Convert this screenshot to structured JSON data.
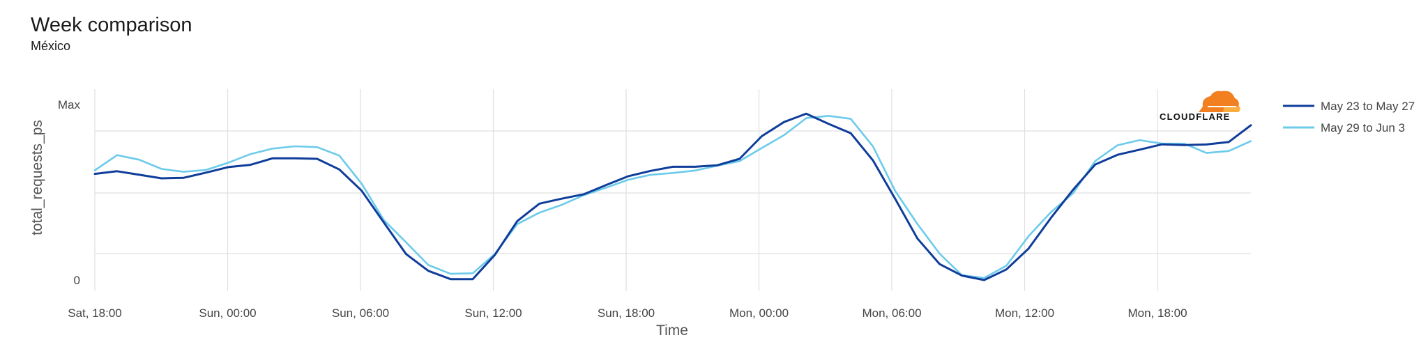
{
  "header": {
    "title": "Week comparison",
    "subtitle": "México"
  },
  "logo": {
    "text": "CLOUDFLARE",
    "color": "#f38020"
  },
  "colors": {
    "series_0": "#0f3d9a",
    "series_1": "#6ccbea",
    "grid": "#e0e0e0"
  },
  "chart_data": {
    "type": "line",
    "title": "Week comparison",
    "subtitle": "México",
    "xlabel": "Time",
    "ylabel": "total_requests_ps",
    "x_ticks": [
      "Sat, 18:00",
      "Sun, 00:00",
      "Sun, 06:00",
      "Sun, 12:00",
      "Sun, 18:00",
      "Mon, 00:00",
      "Mon, 06:00",
      "Mon, 12:00",
      "Mon, 18:00"
    ],
    "y_ticks": [
      "0",
      "Max"
    ],
    "xlim": [
      0,
      52
    ],
    "ylim": [
      0,
      1
    ],
    "grid": true,
    "legend_position": "right",
    "series": [
      {
        "name": "May 23 to May 27",
        "x": [
          0,
          1,
          2,
          3,
          4,
          5,
          6,
          7,
          8,
          9,
          10,
          11,
          12,
          13,
          14,
          15,
          16,
          17,
          18,
          19,
          20,
          21,
          22,
          23,
          24,
          25,
          26,
          27,
          28,
          29,
          30,
          31,
          32,
          33,
          34,
          35,
          36,
          37,
          38,
          39,
          40,
          41,
          42,
          43,
          44,
          45,
          46,
          47,
          48,
          49,
          50,
          51,
          52
        ],
        "values": [
          0.6,
          0.615,
          0.595,
          0.575,
          0.578,
          0.607,
          0.638,
          0.651,
          0.688,
          0.688,
          0.685,
          0.625,
          0.505,
          0.325,
          0.147,
          0.052,
          0.005,
          0.005,
          0.143,
          0.333,
          0.432,
          0.46,
          0.485,
          0.537,
          0.587,
          0.617,
          0.64,
          0.64,
          0.649,
          0.685,
          0.813,
          0.893,
          0.94,
          0.883,
          0.83,
          0.676,
          0.459,
          0.235,
          0.09,
          0.025,
          0.0,
          0.06,
          0.178,
          0.35,
          0.51,
          0.653,
          0.708,
          0.737,
          0.767,
          0.763,
          0.766,
          0.78,
          0.875
        ]
      },
      {
        "name": "May 29 to Jun 3",
        "x": [
          0,
          1,
          2,
          3,
          4,
          5,
          6,
          7,
          8,
          9,
          10,
          11,
          12,
          13,
          14,
          15,
          16,
          17,
          18,
          19,
          20,
          21,
          22,
          23,
          24,
          25,
          26,
          27,
          28,
          29,
          30,
          31,
          32,
          33,
          34,
          35,
          36,
          37,
          38,
          39,
          40,
          41,
          42,
          43,
          44,
          45,
          46,
          47,
          48,
          49,
          50,
          51,
          52
        ],
        "values": [
          0.62,
          0.706,
          0.68,
          0.628,
          0.612,
          0.622,
          0.663,
          0.712,
          0.743,
          0.756,
          0.751,
          0.703,
          0.545,
          0.339,
          0.213,
          0.085,
          0.035,
          0.038,
          0.148,
          0.316,
          0.381,
          0.425,
          0.48,
          0.522,
          0.567,
          0.595,
          0.605,
          0.619,
          0.646,
          0.672,
          0.746,
          0.819,
          0.915,
          0.928,
          0.911,
          0.755,
          0.504,
          0.317,
          0.149,
          0.027,
          0.012,
          0.081,
          0.248,
          0.383,
          0.49,
          0.673,
          0.762,
          0.791,
          0.771,
          0.771,
          0.718,
          0.729,
          0.785
        ]
      }
    ]
  }
}
